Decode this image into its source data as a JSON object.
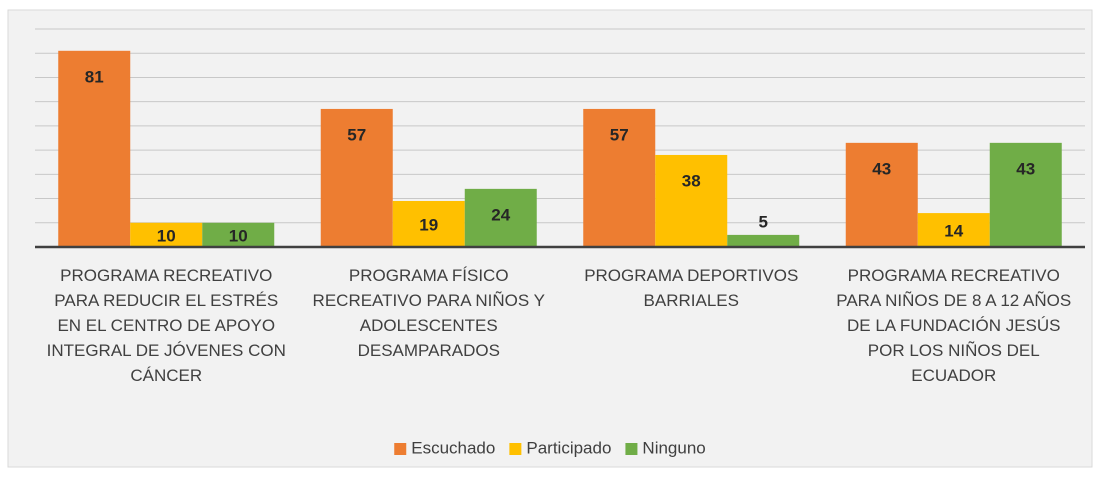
{
  "chart_data": {
    "type": "bar",
    "categories": [
      "PROGRAMA RECREATIVO PARA REDUCIR EL ESTRÉS EN EL CENTRO DE APOYO INTEGRAL DE JÓVENES CON CÁNCER",
      "PROGRAMA FÍSICO RECREATIVO PARA NIÑOS Y ADOLESCENTES DESAMPARADOS",
      "PROGRAMA DEPORTIVOS BARRIALES",
      "PROGRAMA RECREATIVO PARA NIÑOS DE 8 A 12 AÑOS DE LA FUNDACIÓN JESÚS POR LOS NIÑOS DEL ECUADOR"
    ],
    "series": [
      {
        "name": "Escuchado",
        "color": "#ed7d31",
        "values": [
          81,
          57,
          57,
          43
        ]
      },
      {
        "name": "Participado",
        "color": "#ffc000",
        "values": [
          10,
          19,
          38,
          14
        ]
      },
      {
        "name": "Ninguno",
        "color": "#70ad47",
        "values": [
          10,
          24,
          5,
          43
        ]
      }
    ],
    "ylim": [
      0,
      90
    ],
    "yticks": [
      0,
      10,
      20,
      30,
      40,
      50,
      60,
      70,
      80,
      90
    ],
    "grid": true,
    "legend": "bottom"
  }
}
